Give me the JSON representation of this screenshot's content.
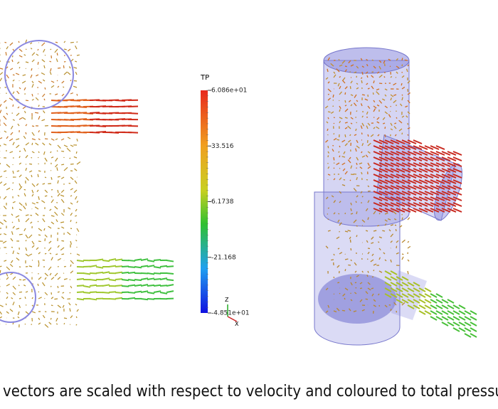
{
  "colorbar": {
    "title": "TP",
    "lim": [
      -48.51,
      60.86
    ],
    "ticks": [
      {
        "value": 60.86,
        "label": "6.086e+01"
      },
      {
        "value": 33.516,
        "label": "33.516"
      },
      {
        "value": 6.1738,
        "label": "6.1738"
      },
      {
        "value": -21.168,
        "label": "-21.168"
      },
      {
        "value": -48.51,
        "label": "-4.851e+01"
      }
    ]
  },
  "axes_triad": {
    "z": "Z",
    "x": "X"
  },
  "caption": "vectors are scaled with respect to velocity and coloured to total pressu"
}
